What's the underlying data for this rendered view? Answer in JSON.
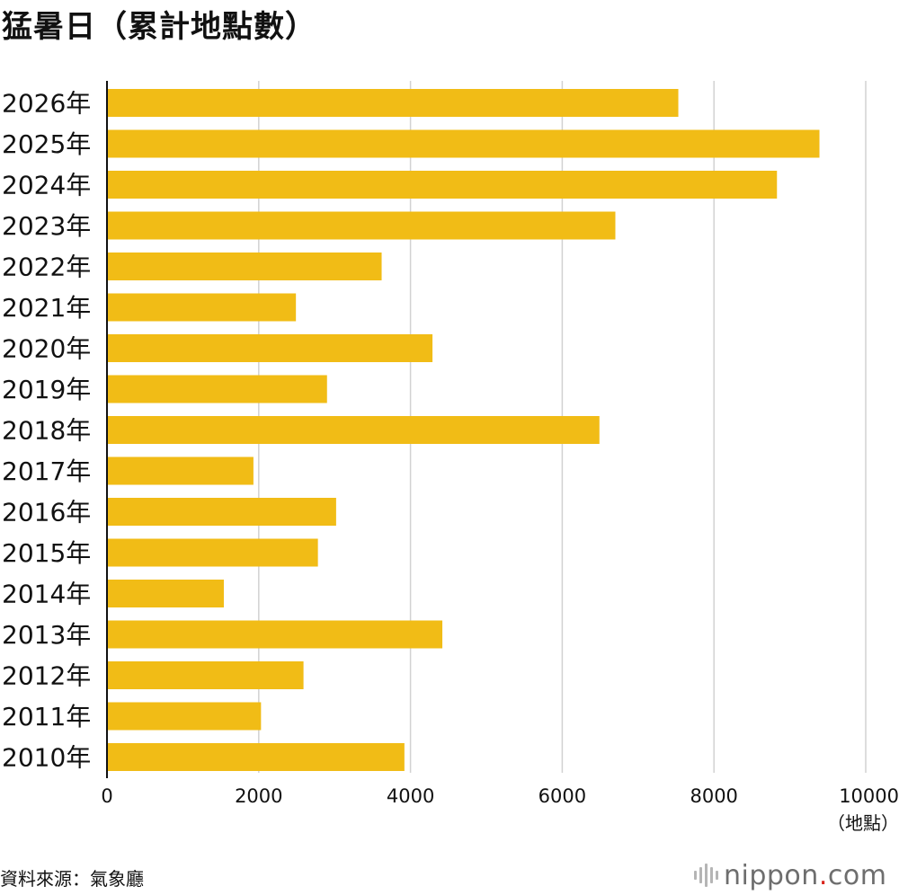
{
  "chart_data": {
    "type": "bar",
    "orientation": "horizontal",
    "title": "猛暑日（累計地點數）",
    "categories": [
      "2026年",
      "2025年",
      "2024年",
      "2023年",
      "2022年",
      "2021年",
      "2020年",
      "2019年",
      "2018年",
      "2017年",
      "2016年",
      "2015年",
      "2014年",
      "2013年",
      "2012年",
      "2011年",
      "2010年"
    ],
    "values": [
      7530,
      9390,
      8830,
      6700,
      3620,
      2490,
      4290,
      2900,
      6490,
      1930,
      3020,
      2780,
      1540,
      4420,
      2590,
      2030,
      3920
    ],
    "xlim": [
      0,
      10000
    ],
    "xticks": [
      "0",
      "2000",
      "4000",
      "6000",
      "8000",
      "10000"
    ],
    "xlabel": "（地點）",
    "grid": true,
    "bar_color": "#f1bc16"
  },
  "source": "資料來源：氣象廳",
  "logo": {
    "name": "nippon",
    "dot": ".",
    "suffix": "com"
  }
}
